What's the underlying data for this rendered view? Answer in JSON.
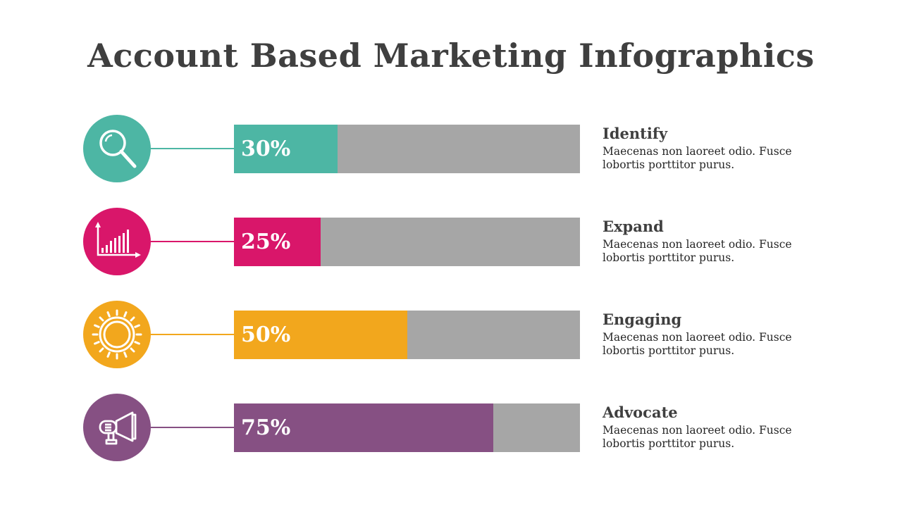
{
  "title": "Account Based Marketing Infographics",
  "items": [
    {
      "percent_label": "30%",
      "percent": 30,
      "heading": "Identify",
      "text": "Maecenas non laoreet odio. Fusce lobortis porttitor purus.",
      "color": "#4db6a4",
      "icon": "magnifier-icon"
    },
    {
      "percent_label": "25%",
      "percent": 25,
      "heading": "Expand",
      "text": "Maecenas non laoreet odio. Fusce lobortis porttitor purus.",
      "color": "#d9166a",
      "icon": "bar-chart-icon"
    },
    {
      "percent_label": "50%",
      "percent": 50,
      "heading": "Engaging",
      "text": "Maecenas non laoreet odio. Fusce lobortis porttitor purus.",
      "color": "#f2a71d",
      "icon": "sun-gear-icon"
    },
    {
      "percent_label": "75%",
      "percent": 75,
      "heading": "Advocate",
      "text": "Maecenas non laoreet odio. Fusce lobortis porttitor purus.",
      "color": "#865083",
      "icon": "megaphone-icon"
    }
  ]
}
